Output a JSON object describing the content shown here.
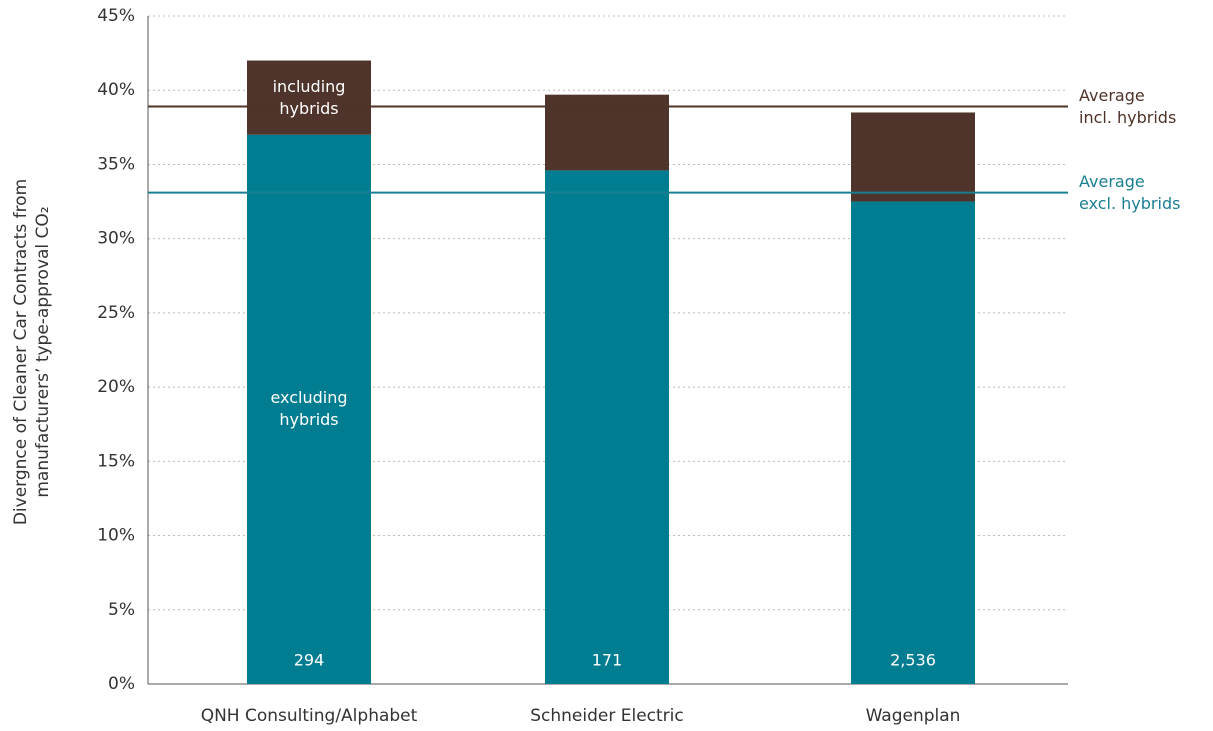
{
  "chart_data": {
    "type": "stacked_bar",
    "y_label": "Divergnce of Cleaner Car Contracts from\nmanufacturers’ type-approval CO₂",
    "categories": [
      "QNH Consulting/Alphabet",
      "Schneider Electric",
      "Wagenplan"
    ],
    "series": [
      {
        "name": "excluding\nhybrids",
        "color": "#007d91",
        "values": [
          37.0,
          34.6,
          32.5
        ]
      },
      {
        "name": "including\nhybrids",
        "color": "#4e342a",
        "values": [
          5.0,
          5.1,
          6.0
        ]
      }
    ],
    "sample_sizes": [
      "294",
      "171",
      "2,536"
    ],
    "reference_lines": [
      {
        "label": "Average\nincl. hybrids",
        "value": 38.9,
        "color": "#4f3228"
      },
      {
        "label": "Average\nexcl. hybrids",
        "value": 33.1,
        "color": "#1a7f93"
      }
    ],
    "ylim": [
      0,
      45
    ],
    "yticks": [
      {
        "value": 0,
        "label": "0%"
      },
      {
        "value": 5,
        "label": "5%"
      },
      {
        "value": 10,
        "label": "10%"
      },
      {
        "value": 15,
        "label": "15%"
      },
      {
        "value": 20,
        "label": "20%"
      },
      {
        "value": 25,
        "label": "25%"
      },
      {
        "value": 30,
        "label": "30%"
      },
      {
        "value": 35,
        "label": "35%"
      },
      {
        "value": 40,
        "label": "40%"
      },
      {
        "value": 45,
        "label": "45%"
      }
    ],
    "grid": true
  }
}
